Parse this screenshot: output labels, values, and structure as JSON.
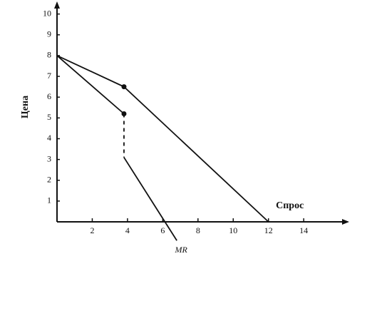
{
  "chart_data": {
    "type": "line",
    "ylabel": "Цена",
    "xlim": [
      0,
      16.5
    ],
    "ylim": [
      0,
      10.4
    ],
    "xticks": [
      2,
      4,
      6,
      8,
      10,
      12,
      14
    ],
    "yticks": [
      1,
      2,
      3,
      4,
      5,
      6,
      7,
      8,
      9,
      10
    ],
    "series": [
      {
        "name": "Спрос",
        "color": "#111111",
        "x": [
          0,
          3.8,
          12
        ],
        "values": [
          8,
          6.5,
          0
        ],
        "segment_styles": [
          "solid",
          "solid"
        ],
        "marker_points": [
          1
        ]
      },
      {
        "name": "MR",
        "color": "#111111",
        "x": [
          0,
          3.8,
          3.8,
          6.8
        ],
        "values": [
          8,
          5.2,
          3.1,
          -0.9
        ],
        "segment_styles": [
          "solid",
          "dashed",
          "solid"
        ],
        "marker_points": [
          1
        ]
      }
    ]
  }
}
